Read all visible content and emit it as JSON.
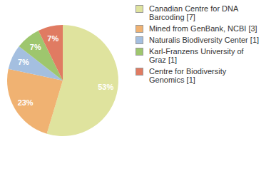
{
  "chart_data": {
    "type": "pie",
    "categories": [
      "Canadian Centre for DNA Barcoding [7]",
      "Mined from GenBank, NCBI [3]",
      "Naturalis Biodiversity Center [1]",
      "Karl-Franzens University of Graz [1]",
      "Centre for Biodiversity Genomics [1]"
    ],
    "values": [
      53,
      23,
      7,
      7,
      7
    ],
    "value_labels": [
      "53%",
      "23%",
      "7%",
      "7%",
      "7%"
    ],
    "colors": [
      "#dfe39e",
      "#f0b272",
      "#a4bfe0",
      "#9ec66e",
      "#e07b62"
    ],
    "data_labels": true,
    "legend": "right"
  }
}
